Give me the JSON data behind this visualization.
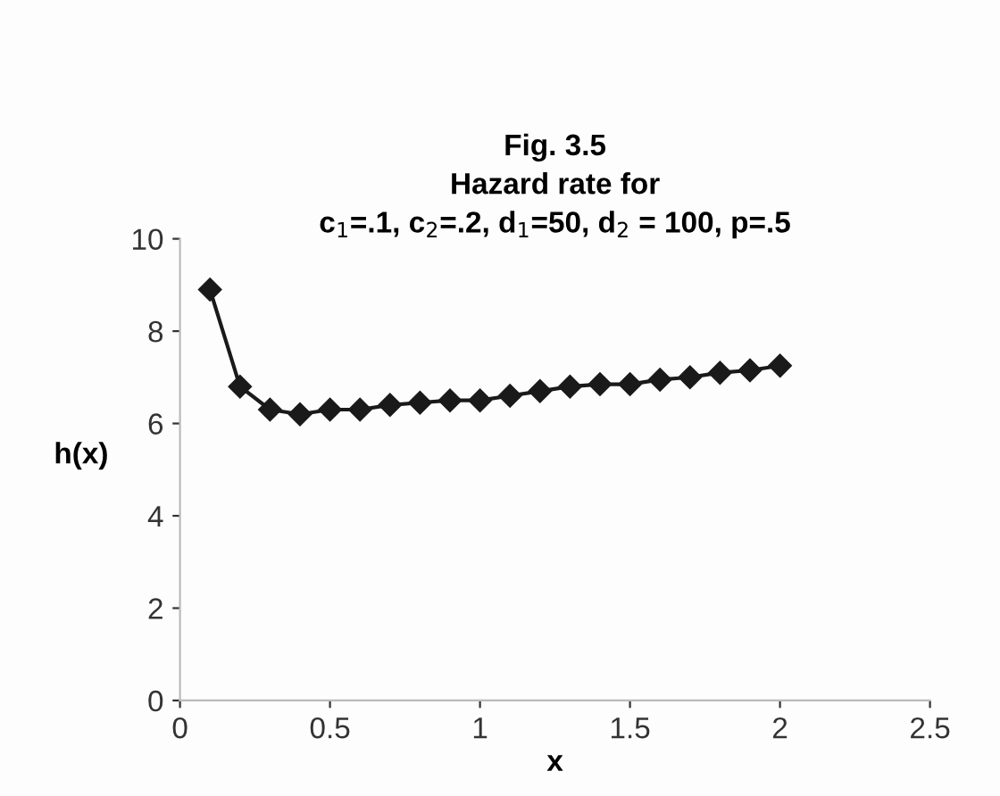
{
  "chart_data": {
    "type": "line",
    "title": "Fig. 3.5\nHazard rate for\nc$_{1}$=.1, c$_{2}$=.2, d$_{1}$=50, d$_{2}$ = 100, p=.5",
    "xlabel": "x",
    "ylabel": "h(x)",
    "x": [
      0.1,
      0.2,
      0.3,
      0.4,
      0.5,
      0.6,
      0.7,
      0.8,
      0.9,
      1.0,
      1.1,
      1.2,
      1.3,
      1.4,
      1.5,
      1.6,
      1.7,
      1.8,
      1.9,
      2.0
    ],
    "series": [
      {
        "color": "#1a1a1a",
        "values": [
          8.9,
          6.8,
          6.3,
          6.2,
          6.3,
          6.3,
          6.4,
          6.45,
          6.5,
          6.5,
          6.6,
          6.7,
          6.8,
          6.85,
          6.85,
          6.95,
          7.0,
          7.1,
          7.15,
          7.25
        ]
      }
    ],
    "xlim": [
      0,
      2.5
    ],
    "xticks": [
      0,
      0.5,
      1,
      1.5,
      2,
      2.5
    ],
    "ylim": [
      0,
      10
    ],
    "yticks": [
      0,
      2,
      4,
      6,
      8,
      10
    ],
    "marker": "diamond",
    "line_style": "solid",
    "grid": false
  }
}
